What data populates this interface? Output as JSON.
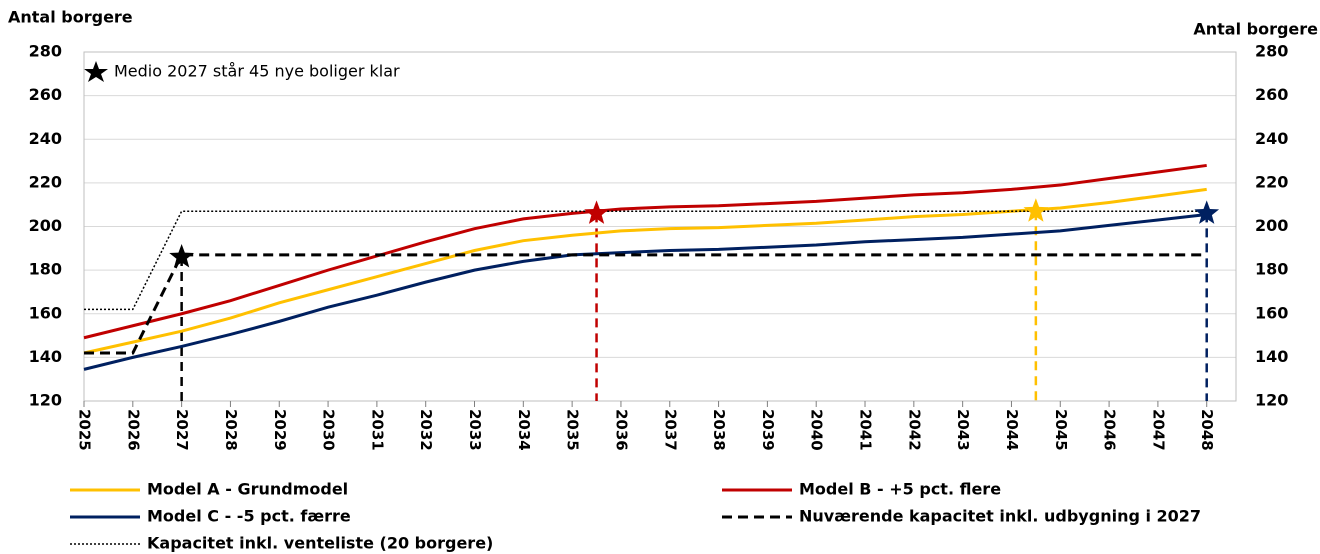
{
  "chart_data": {
    "type": "line",
    "y_label_left": "Antal borgere",
    "y_label_right": "Antal borgere",
    "annotation": "Medio 2027 står 45 nye boliger klar",
    "x": [
      2025,
      2026,
      2027,
      2028,
      2029,
      2030,
      2031,
      2032,
      2033,
      2034,
      2035,
      2036,
      2037,
      2038,
      2039,
      2040,
      2041,
      2042,
      2043,
      2044,
      2045,
      2046,
      2047,
      2048
    ],
    "series": [
      {
        "name": "Model A - Grundmodel",
        "color": "#FFC000",
        "dash": "solid",
        "values": [
          142,
          147,
          152,
          158,
          165,
          171,
          177,
          183,
          189,
          193.5,
          196,
          198,
          199,
          199.5,
          200.5,
          201.5,
          203,
          204.5,
          205.5,
          207,
          208.5,
          211,
          214,
          217
        ]
      },
      {
        "name": "Model B - +5 pct. flere",
        "color": "#C00000",
        "dash": "solid",
        "values": [
          149,
          154.5,
          160,
          166,
          173,
          180,
          186.5,
          193,
          199,
          203.5,
          206,
          208,
          209,
          209.5,
          210.5,
          211.5,
          213,
          214.5,
          215.5,
          217,
          219,
          222,
          225,
          228
        ]
      },
      {
        "name": "Model C - -5 pct. færre",
        "color": "#002060",
        "dash": "solid",
        "values": [
          134.5,
          140,
          145,
          150.5,
          156.5,
          163,
          168.5,
          174.5,
          180,
          184,
          187,
          188,
          189,
          189.5,
          190.5,
          191.5,
          193,
          194,
          195,
          196.5,
          198,
          200.5,
          203,
          205.5
        ]
      },
      {
        "name": "Nuværende kapacitet inkl. udbygning i 2027",
        "color": "#000000",
        "dash": "dashed",
        "values": [
          142,
          142,
          187,
          187,
          187,
          187,
          187,
          187,
          187,
          187,
          187,
          187,
          187,
          187,
          187,
          187,
          187,
          187,
          187,
          187,
          187,
          187,
          187,
          187
        ]
      },
      {
        "name": "Kapacitet inkl. venteliste (20 borgere)",
        "color": "#000000",
        "dash": "dotted",
        "values": [
          162,
          162,
          207,
          207,
          207,
          207,
          207,
          207,
          207,
          207,
          207,
          207,
          207,
          207,
          207,
          207,
          207,
          207,
          207,
          207,
          207,
          207,
          207,
          207
        ]
      }
    ],
    "milestones": [
      {
        "x": 2027,
        "y": 186,
        "color": "#000000"
      },
      {
        "x": 2035.5,
        "y": 206,
        "color": "#C00000"
      },
      {
        "x": 2044.5,
        "y": 207,
        "color": "#FFC000"
      },
      {
        "x": 2048,
        "y": 206,
        "color": "#002060"
      }
    ],
    "xlim": [
      2025,
      2048.6
    ],
    "xticks": [
      2025,
      2026,
      2027,
      2028,
      2029,
      2030,
      2031,
      2032,
      2033,
      2034,
      2035,
      2036,
      2037,
      2038,
      2039,
      2040,
      2041,
      2042,
      2043,
      2044,
      2045,
      2046,
      2047,
      2048
    ],
    "ylim": [
      120,
      280
    ],
    "yticks": [
      120,
      140,
      160,
      180,
      200,
      220,
      240,
      260,
      280
    ],
    "grid": true
  }
}
